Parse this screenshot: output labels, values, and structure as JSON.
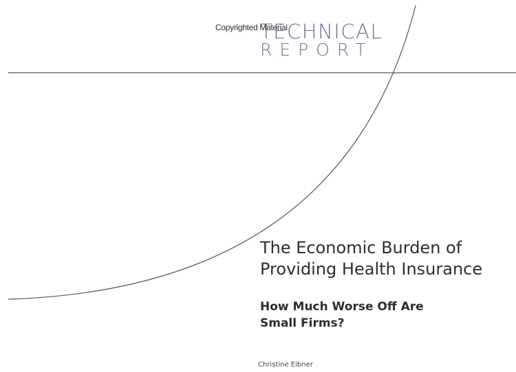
{
  "header": {
    "series_line1": "TECHNICAL",
    "series_line2": "REPORT",
    "watermark": "Copyrighted Material"
  },
  "cover": {
    "title_line1": "The Economic Burden of",
    "title_line2": "Providing Health Insurance",
    "subtitle_line1": "How Much Worse Off Are",
    "subtitle_line2": "Small Firms?",
    "author": "Christine Eibner"
  },
  "colors": {
    "series_word": "#6e6f96",
    "text": "#2d2d2d",
    "rule": "#555555"
  }
}
